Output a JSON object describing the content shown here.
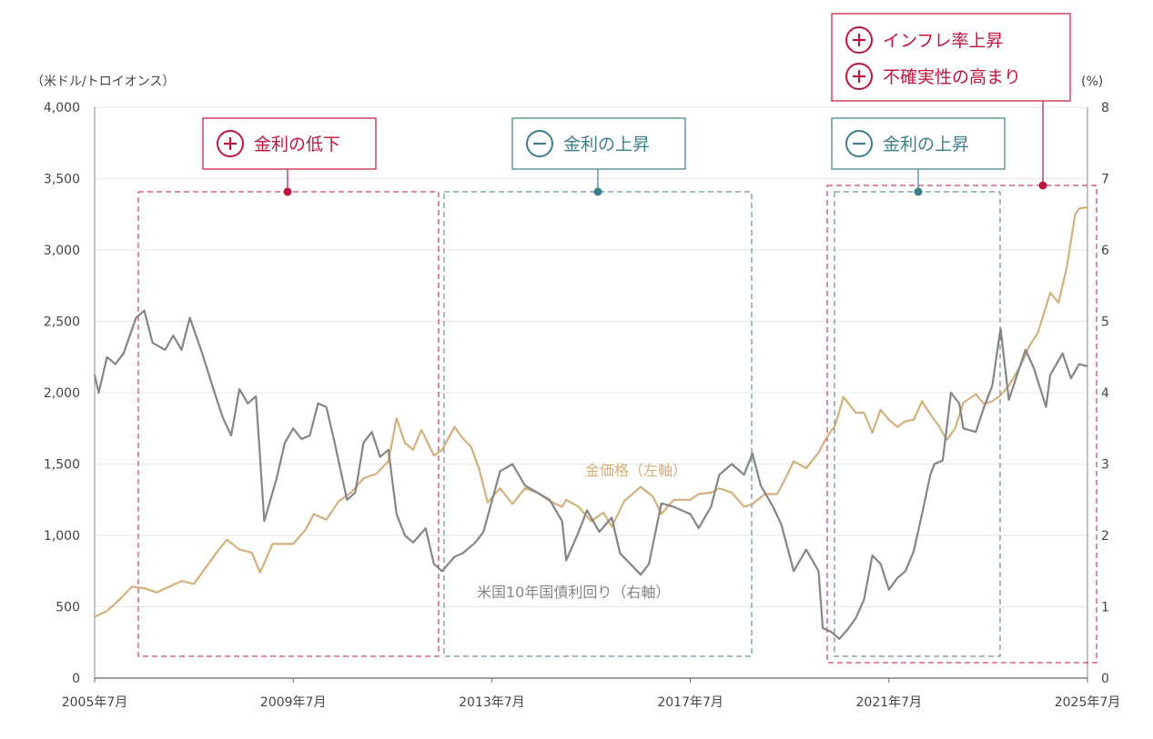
{
  "chart_data": {
    "type": "line",
    "title": "",
    "left_axis": {
      "unit_label": "（米ドル/トロイオンス）",
      "ylim": [
        0,
        4000
      ],
      "ticks": [
        "0",
        "500",
        "1,000",
        "1,500",
        "2,000",
        "2,500",
        "3,000",
        "3,500",
        "4,000"
      ]
    },
    "right_axis": {
      "unit_label": "(%)",
      "ylim": [
        0,
        8
      ],
      "ticks": [
        "0",
        "1",
        "2",
        "3",
        "4",
        "5",
        "6",
        "7",
        "8"
      ]
    },
    "x_axis": {
      "range": [
        "2005-07",
        "2025-07"
      ],
      "tick_labels": [
        "2005年7月",
        "2009年7月",
        "2013年7月",
        "2017年7月",
        "2021年7月",
        "2025年7月"
      ],
      "tick_dates": [
        "2005-07",
        "2009-07",
        "2013-07",
        "2017-07",
        "2021-07",
        "2025-07"
      ]
    },
    "grid": true,
    "colors": {
      "gold": "#d4b07a",
      "treasury": "#858585",
      "plus": "#c0143c",
      "minus": "#3c7f8c"
    },
    "series": [
      {
        "name": "金価格（左軸）",
        "axis": "left",
        "color": "#d4b07a",
        "points": [
          [
            "2005-07",
            430
          ],
          [
            "2005-10",
            470
          ],
          [
            "2006-01",
            550
          ],
          [
            "2006-04",
            640
          ],
          [
            "2006-07",
            630
          ],
          [
            "2006-10",
            600
          ],
          [
            "2007-01",
            640
          ],
          [
            "2007-04",
            680
          ],
          [
            "2007-07",
            660
          ],
          [
            "2007-10",
            780
          ],
          [
            "2008-01",
            900
          ],
          [
            "2008-03",
            970
          ],
          [
            "2008-06",
            900
          ],
          [
            "2008-09",
            880
          ],
          [
            "2008-11",
            740
          ],
          [
            "2009-02",
            940
          ],
          [
            "2009-07",
            940
          ],
          [
            "2009-10",
            1040
          ],
          [
            "2009-12",
            1150
          ],
          [
            "2010-03",
            1110
          ],
          [
            "2010-06",
            1240
          ],
          [
            "2010-09",
            1300
          ],
          [
            "2010-12",
            1400
          ],
          [
            "2011-03",
            1430
          ],
          [
            "2011-06",
            1520
          ],
          [
            "2011-08",
            1820
          ],
          [
            "2011-10",
            1650
          ],
          [
            "2011-12",
            1600
          ],
          [
            "2012-02",
            1740
          ],
          [
            "2012-05",
            1560
          ],
          [
            "2012-07",
            1600
          ],
          [
            "2012-10",
            1760
          ],
          [
            "2012-12",
            1680
          ],
          [
            "2013-02",
            1620
          ],
          [
            "2013-04",
            1460
          ],
          [
            "2013-06",
            1230
          ],
          [
            "2013-09",
            1330
          ],
          [
            "2013-12",
            1220
          ],
          [
            "2014-03",
            1330
          ],
          [
            "2014-06",
            1300
          ],
          [
            "2014-09",
            1240
          ],
          [
            "2014-12",
            1200
          ],
          [
            "2015-01",
            1250
          ],
          [
            "2015-04",
            1200
          ],
          [
            "2015-07",
            1100
          ],
          [
            "2015-10",
            1160
          ],
          [
            "2015-12",
            1060
          ],
          [
            "2016-03",
            1240
          ],
          [
            "2016-07",
            1340
          ],
          [
            "2016-10",
            1270
          ],
          [
            "2016-12",
            1150
          ],
          [
            "2017-03",
            1250
          ],
          [
            "2017-07",
            1250
          ],
          [
            "2017-09",
            1290
          ],
          [
            "2017-12",
            1300
          ],
          [
            "2018-02",
            1330
          ],
          [
            "2018-05",
            1300
          ],
          [
            "2018-08",
            1200
          ],
          [
            "2018-10",
            1220
          ],
          [
            "2019-01",
            1290
          ],
          [
            "2019-04",
            1290
          ],
          [
            "2019-06",
            1400
          ],
          [
            "2019-08",
            1520
          ],
          [
            "2019-11",
            1470
          ],
          [
            "2020-02",
            1580
          ],
          [
            "2020-04",
            1690
          ],
          [
            "2020-06",
            1770
          ],
          [
            "2020-08",
            1970
          ],
          [
            "2020-11",
            1860
          ],
          [
            "2021-01",
            1860
          ],
          [
            "2021-03",
            1720
          ],
          [
            "2021-05",
            1880
          ],
          [
            "2021-07",
            1810
          ],
          [
            "2021-09",
            1760
          ],
          [
            "2021-11",
            1800
          ],
          [
            "2022-01",
            1810
          ],
          [
            "2022-03",
            1940
          ],
          [
            "2022-05",
            1850
          ],
          [
            "2022-07",
            1770
          ],
          [
            "2022-09",
            1670
          ],
          [
            "2022-11",
            1750
          ],
          [
            "2023-01",
            1930
          ],
          [
            "2023-04",
            1990
          ],
          [
            "2023-06",
            1920
          ],
          [
            "2023-08",
            1940
          ],
          [
            "2023-10",
            1980
          ],
          [
            "2023-12",
            2050
          ],
          [
            "2024-03",
            2200
          ],
          [
            "2024-05",
            2330
          ],
          [
            "2024-07",
            2420
          ],
          [
            "2024-10",
            2700
          ],
          [
            "2024-12",
            2630
          ],
          [
            "2025-02",
            2880
          ],
          [
            "2025-04",
            3250
          ],
          [
            "2025-05",
            3290
          ],
          [
            "2025-07",
            3300
          ]
        ]
      },
      {
        "name": "米国10年国債利回り（右軸）",
        "axis": "right",
        "color": "#858585",
        "points": [
          [
            "2005-07",
            4.25
          ],
          [
            "2005-08",
            4.0
          ],
          [
            "2005-10",
            4.5
          ],
          [
            "2005-12",
            4.4
          ],
          [
            "2006-02",
            4.55
          ],
          [
            "2006-05",
            5.05
          ],
          [
            "2006-07",
            5.15
          ],
          [
            "2006-09",
            4.7
          ],
          [
            "2006-12",
            4.6
          ],
          [
            "2007-02",
            4.8
          ],
          [
            "2007-04",
            4.6
          ],
          [
            "2007-06",
            5.05
          ],
          [
            "2007-09",
            4.55
          ],
          [
            "2007-12",
            4.0
          ],
          [
            "2008-02",
            3.65
          ],
          [
            "2008-04",
            3.4
          ],
          [
            "2008-06",
            4.05
          ],
          [
            "2008-08",
            3.85
          ],
          [
            "2008-10",
            3.95
          ],
          [
            "2008-12",
            2.2
          ],
          [
            "2009-03",
            2.8
          ],
          [
            "2009-05",
            3.3
          ],
          [
            "2009-07",
            3.5
          ],
          [
            "2009-09",
            3.35
          ],
          [
            "2009-11",
            3.4
          ],
          [
            "2010-01",
            3.85
          ],
          [
            "2010-03",
            3.8
          ],
          [
            "2010-05",
            3.3
          ],
          [
            "2010-08",
            2.5
          ],
          [
            "2010-10",
            2.6
          ],
          [
            "2010-12",
            3.3
          ],
          [
            "2011-02",
            3.45
          ],
          [
            "2011-04",
            3.1
          ],
          [
            "2011-06",
            3.2
          ],
          [
            "2011-08",
            2.3
          ],
          [
            "2011-10",
            2.0
          ],
          [
            "2011-12",
            1.9
          ],
          [
            "2012-03",
            2.1
          ],
          [
            "2012-05",
            1.6
          ],
          [
            "2012-07",
            1.5
          ],
          [
            "2012-10",
            1.7
          ],
          [
            "2012-12",
            1.75
          ],
          [
            "2013-03",
            1.9
          ],
          [
            "2013-05",
            2.05
          ],
          [
            "2013-09",
            2.9
          ],
          [
            "2013-12",
            3.0
          ],
          [
            "2014-03",
            2.7
          ],
          [
            "2014-06",
            2.6
          ],
          [
            "2014-09",
            2.5
          ],
          [
            "2014-12",
            2.2
          ],
          [
            "2015-01",
            1.65
          ],
          [
            "2015-04",
            2.05
          ],
          [
            "2015-06",
            2.35
          ],
          [
            "2015-09",
            2.05
          ],
          [
            "2015-12",
            2.25
          ],
          [
            "2016-02",
            1.75
          ],
          [
            "2016-07",
            1.45
          ],
          [
            "2016-09",
            1.6
          ],
          [
            "2016-12",
            2.45
          ],
          [
            "2017-03",
            2.4
          ],
          [
            "2017-07",
            2.3
          ],
          [
            "2017-09",
            2.1
          ],
          [
            "2017-12",
            2.4
          ],
          [
            "2018-02",
            2.85
          ],
          [
            "2018-05",
            3.0
          ],
          [
            "2018-08",
            2.85
          ],
          [
            "2018-10",
            3.15
          ],
          [
            "2018-12",
            2.7
          ],
          [
            "2019-03",
            2.4
          ],
          [
            "2019-05",
            2.15
          ],
          [
            "2019-08",
            1.5
          ],
          [
            "2019-11",
            1.8
          ],
          [
            "2020-02",
            1.5
          ],
          [
            "2020-03",
            0.7
          ],
          [
            "2020-05",
            0.65
          ],
          [
            "2020-07",
            0.55
          ],
          [
            "2020-09",
            0.68
          ],
          [
            "2020-11",
            0.84
          ],
          [
            "2021-01",
            1.1
          ],
          [
            "2021-03",
            1.72
          ],
          [
            "2021-05",
            1.6
          ],
          [
            "2021-07",
            1.24
          ],
          [
            "2021-09",
            1.4
          ],
          [
            "2021-11",
            1.5
          ],
          [
            "2022-01",
            1.78
          ],
          [
            "2022-03",
            2.3
          ],
          [
            "2022-05",
            2.85
          ],
          [
            "2022-06",
            3.0
          ],
          [
            "2022-08",
            3.05
          ],
          [
            "2022-10",
            4.0
          ],
          [
            "2022-12",
            3.85
          ],
          [
            "2023-01",
            3.5
          ],
          [
            "2023-04",
            3.45
          ],
          [
            "2023-06",
            3.8
          ],
          [
            "2023-08",
            4.1
          ],
          [
            "2023-10",
            4.9
          ],
          [
            "2023-12",
            3.9
          ],
          [
            "2024-02",
            4.25
          ],
          [
            "2024-04",
            4.6
          ],
          [
            "2024-06",
            4.35
          ],
          [
            "2024-09",
            3.8
          ],
          [
            "2024-10",
            4.25
          ],
          [
            "2025-01",
            4.55
          ],
          [
            "2025-03",
            4.2
          ],
          [
            "2025-05",
            4.4
          ],
          [
            "2025-07",
            4.37
          ]
        ]
      }
    ],
    "annotations": [
      {
        "sign": "plus",
        "lines": [
          "金利の低下"
        ],
        "from": "2006-07",
        "to": "2012-10"
      },
      {
        "sign": "minus",
        "lines": [
          "金利の上昇"
        ],
        "from": "2012-10",
        "to": "2019-01"
      },
      {
        "sign": "minus",
        "lines": [
          "金利の上昇"
        ],
        "from": "2020-07",
        "to": "2023-10"
      },
      {
        "sign": "plus",
        "lines": [
          "インフレ率上昇",
          "不確実性の高まり"
        ],
        "from": "2020-06",
        "to": "2025-07"
      }
    ],
    "legend": "inline labels"
  }
}
